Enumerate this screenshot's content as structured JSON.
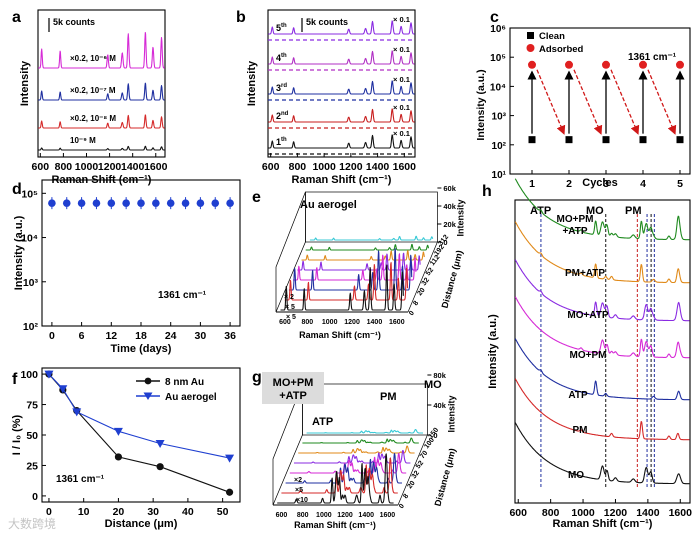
{
  "watermark": "大数跨境",
  "chart_data": [
    {
      "panel": "a",
      "type": "line",
      "xlabel": "Raman Shift (cm⁻¹)",
      "ylabel": "Intensity",
      "x_ticks": [
        600,
        800,
        1000,
        1200,
        1400,
        1600
      ],
      "xlim": [
        580,
        1680
      ],
      "scale_bar": "5k counts",
      "series": [
        {
          "label": "×0.2, 10⁻⁶ M",
          "color": "#d62ad6"
        },
        {
          "label": "×0.2, 10⁻⁷ M",
          "color": "#1f2fa0"
        },
        {
          "label": "×0.2, 10⁻⁸ M",
          "color": "#d52a2a"
        },
        {
          "label": "10⁻⁹ M",
          "color": "#111111"
        }
      ]
    },
    {
      "panel": "b",
      "type": "line",
      "xlabel": "Raman Shift (cm⁻¹)",
      "ylabel": "Intensity",
      "x_ticks": [
        600,
        800,
        1000,
        1200,
        1400,
        1600
      ],
      "xlim": [
        580,
        1680
      ],
      "scale_bar": "5k counts",
      "series": [
        {
          "label": "5",
          "sup": "th",
          "scale": "× 0.1",
          "color": "#8a2be2"
        },
        {
          "label": "4",
          "sup": "th",
          "scale": "× 0.1",
          "color": "#b02fc4"
        },
        {
          "label": "3",
          "sup": "rd",
          "scale": "× 0.1",
          "color": "#1f2fa0"
        },
        {
          "label": "2",
          "sup": "nd",
          "scale": "× 0.1",
          "color": "#c81e1e"
        },
        {
          "label": "1",
          "sup": "th",
          "scale": "× 0.1",
          "color": "#111111"
        }
      ]
    },
    {
      "panel": "c",
      "type": "scatter",
      "xlabel": "Cycles",
      "ylabel": "Intensity (a.u.)",
      "yscale": "log",
      "ylim": [
        10,
        1000000
      ],
      "x_ticks": [
        1,
        2,
        3,
        4,
        5
      ],
      "y_tick_labels": [
        "10¹",
        "10²",
        "10³",
        "10⁴",
        "10⁵",
        "10⁶"
      ],
      "annotation": "1361 cm⁻¹",
      "series": [
        {
          "name": "Clean",
          "color": "#000000",
          "x": [
            1,
            2,
            3,
            4,
            5
          ],
          "y": [
            150,
            150,
            150,
            150,
            150
          ]
        },
        {
          "name": "Adsorbed",
          "color": "#e02020",
          "x": [
            1,
            2,
            3,
            4,
            5
          ],
          "y": [
            55000,
            55000,
            55000,
            55000,
            55000
          ]
        }
      ]
    },
    {
      "panel": "d",
      "type": "scatter",
      "xlabel": "Time (days)",
      "ylabel": "Intensity (a.u.)",
      "yscale": "log",
      "ylim": [
        100,
        200000
      ],
      "xlim": [
        -2,
        38
      ],
      "x_ticks": [
        0,
        6,
        12,
        18,
        24,
        30,
        36
      ],
      "y_tick_labels": [
        "10²",
        "10³",
        "10⁴",
        "10⁵"
      ],
      "annotation": "1361 cm⁻¹",
      "series": [
        {
          "color": "#1f3fd0",
          "x": [
            0,
            3,
            6,
            9,
            12,
            15,
            18,
            21,
            24,
            27,
            30,
            33,
            36
          ],
          "y": [
            60000,
            60000,
            60000,
            60000,
            60000,
            60000,
            60000,
            60000,
            60000,
            60000,
            60000,
            60000,
            60000
          ]
        }
      ]
    },
    {
      "panel": "e",
      "type": "line",
      "title": "Au aerogel",
      "xlabel": "Raman Shift (cm⁻¹)",
      "ylabel": "Intensity",
      "depth_label": "Distance (μm)",
      "x_ticks": [
        600,
        800,
        1000,
        1200,
        1400,
        1600
      ],
      "z_ticks": [
        "0",
        "8",
        "20",
        "32",
        "52",
        "112",
        "192",
        "312"
      ],
      "y_ticks": [
        "0",
        "20k",
        "40k",
        "60k"
      ],
      "factors": [
        "× 2",
        "× 5",
        "× 5"
      ]
    },
    {
      "panel": "f",
      "type": "line",
      "xlabel": "Distance (μm)",
      "ylabel": "I / I₀ (%)",
      "xlim": [
        -2,
        55
      ],
      "ylim": [
        -5,
        105
      ],
      "x_ticks": [
        0,
        10,
        20,
        30,
        40,
        50
      ],
      "y_ticks": [
        0,
        25,
        50,
        75,
        100
      ],
      "annotation": "1361 cm⁻¹",
      "legend_position": "top-right",
      "series": [
        {
          "name": "8 nm Au",
          "color": "#111111",
          "x": [
            0,
            4,
            8,
            20,
            32,
            52
          ],
          "y": [
            100,
            87,
            70,
            32,
            24,
            3
          ]
        },
        {
          "name": "Au aerogel",
          "color": "#1f3fd0",
          "x": [
            0,
            4,
            8,
            20,
            32,
            52
          ],
          "y": [
            100,
            88,
            69,
            53,
            43,
            31
          ]
        }
      ]
    },
    {
      "panel": "g",
      "type": "line",
      "title": "MO+PM\n+ATP",
      "xlabel": "Raman Shift (cm⁻¹)",
      "ylabel": "Intensity",
      "depth_label": "Distance (μm)",
      "x_ticks": [
        600,
        800,
        1000,
        1200,
        1400,
        1600
      ],
      "z_ticks": [
        "0",
        "8",
        "20",
        "32",
        "52",
        "70",
        "100",
        "150"
      ],
      "y_ticks": [
        "0",
        "40k",
        "80k"
      ],
      "peak_labels": [
        "ATP",
        "PM",
        "MO"
      ],
      "factors": [
        "×2",
        "×5",
        "×10"
      ]
    },
    {
      "panel": "h",
      "type": "line",
      "xlabel": "Raman Shift (cm⁻¹)",
      "ylabel": "Intensity (a.u.)",
      "x_ticks": [
        600,
        800,
        1000,
        1200,
        1400,
        1600
      ],
      "xlim": [
        580,
        1660
      ],
      "peak_labels": [
        "ATP",
        "MO",
        "PM"
      ],
      "series": [
        {
          "name": "MO+PM\n+ATP",
          "color": "#1f8a1f"
        },
        {
          "name": "PM+ATP",
          "color": "#e08a1a"
        },
        {
          "name": "MO+ATP",
          "color": "#8a2be2"
        },
        {
          "name": "MO+PM",
          "color": "#d62ad6"
        },
        {
          "name": "ATP",
          "color": "#1f2fa0"
        },
        {
          "name": "PM",
          "color": "#d52a2a"
        },
        {
          "name": "MO",
          "color": "#111111"
        }
      ]
    }
  ]
}
